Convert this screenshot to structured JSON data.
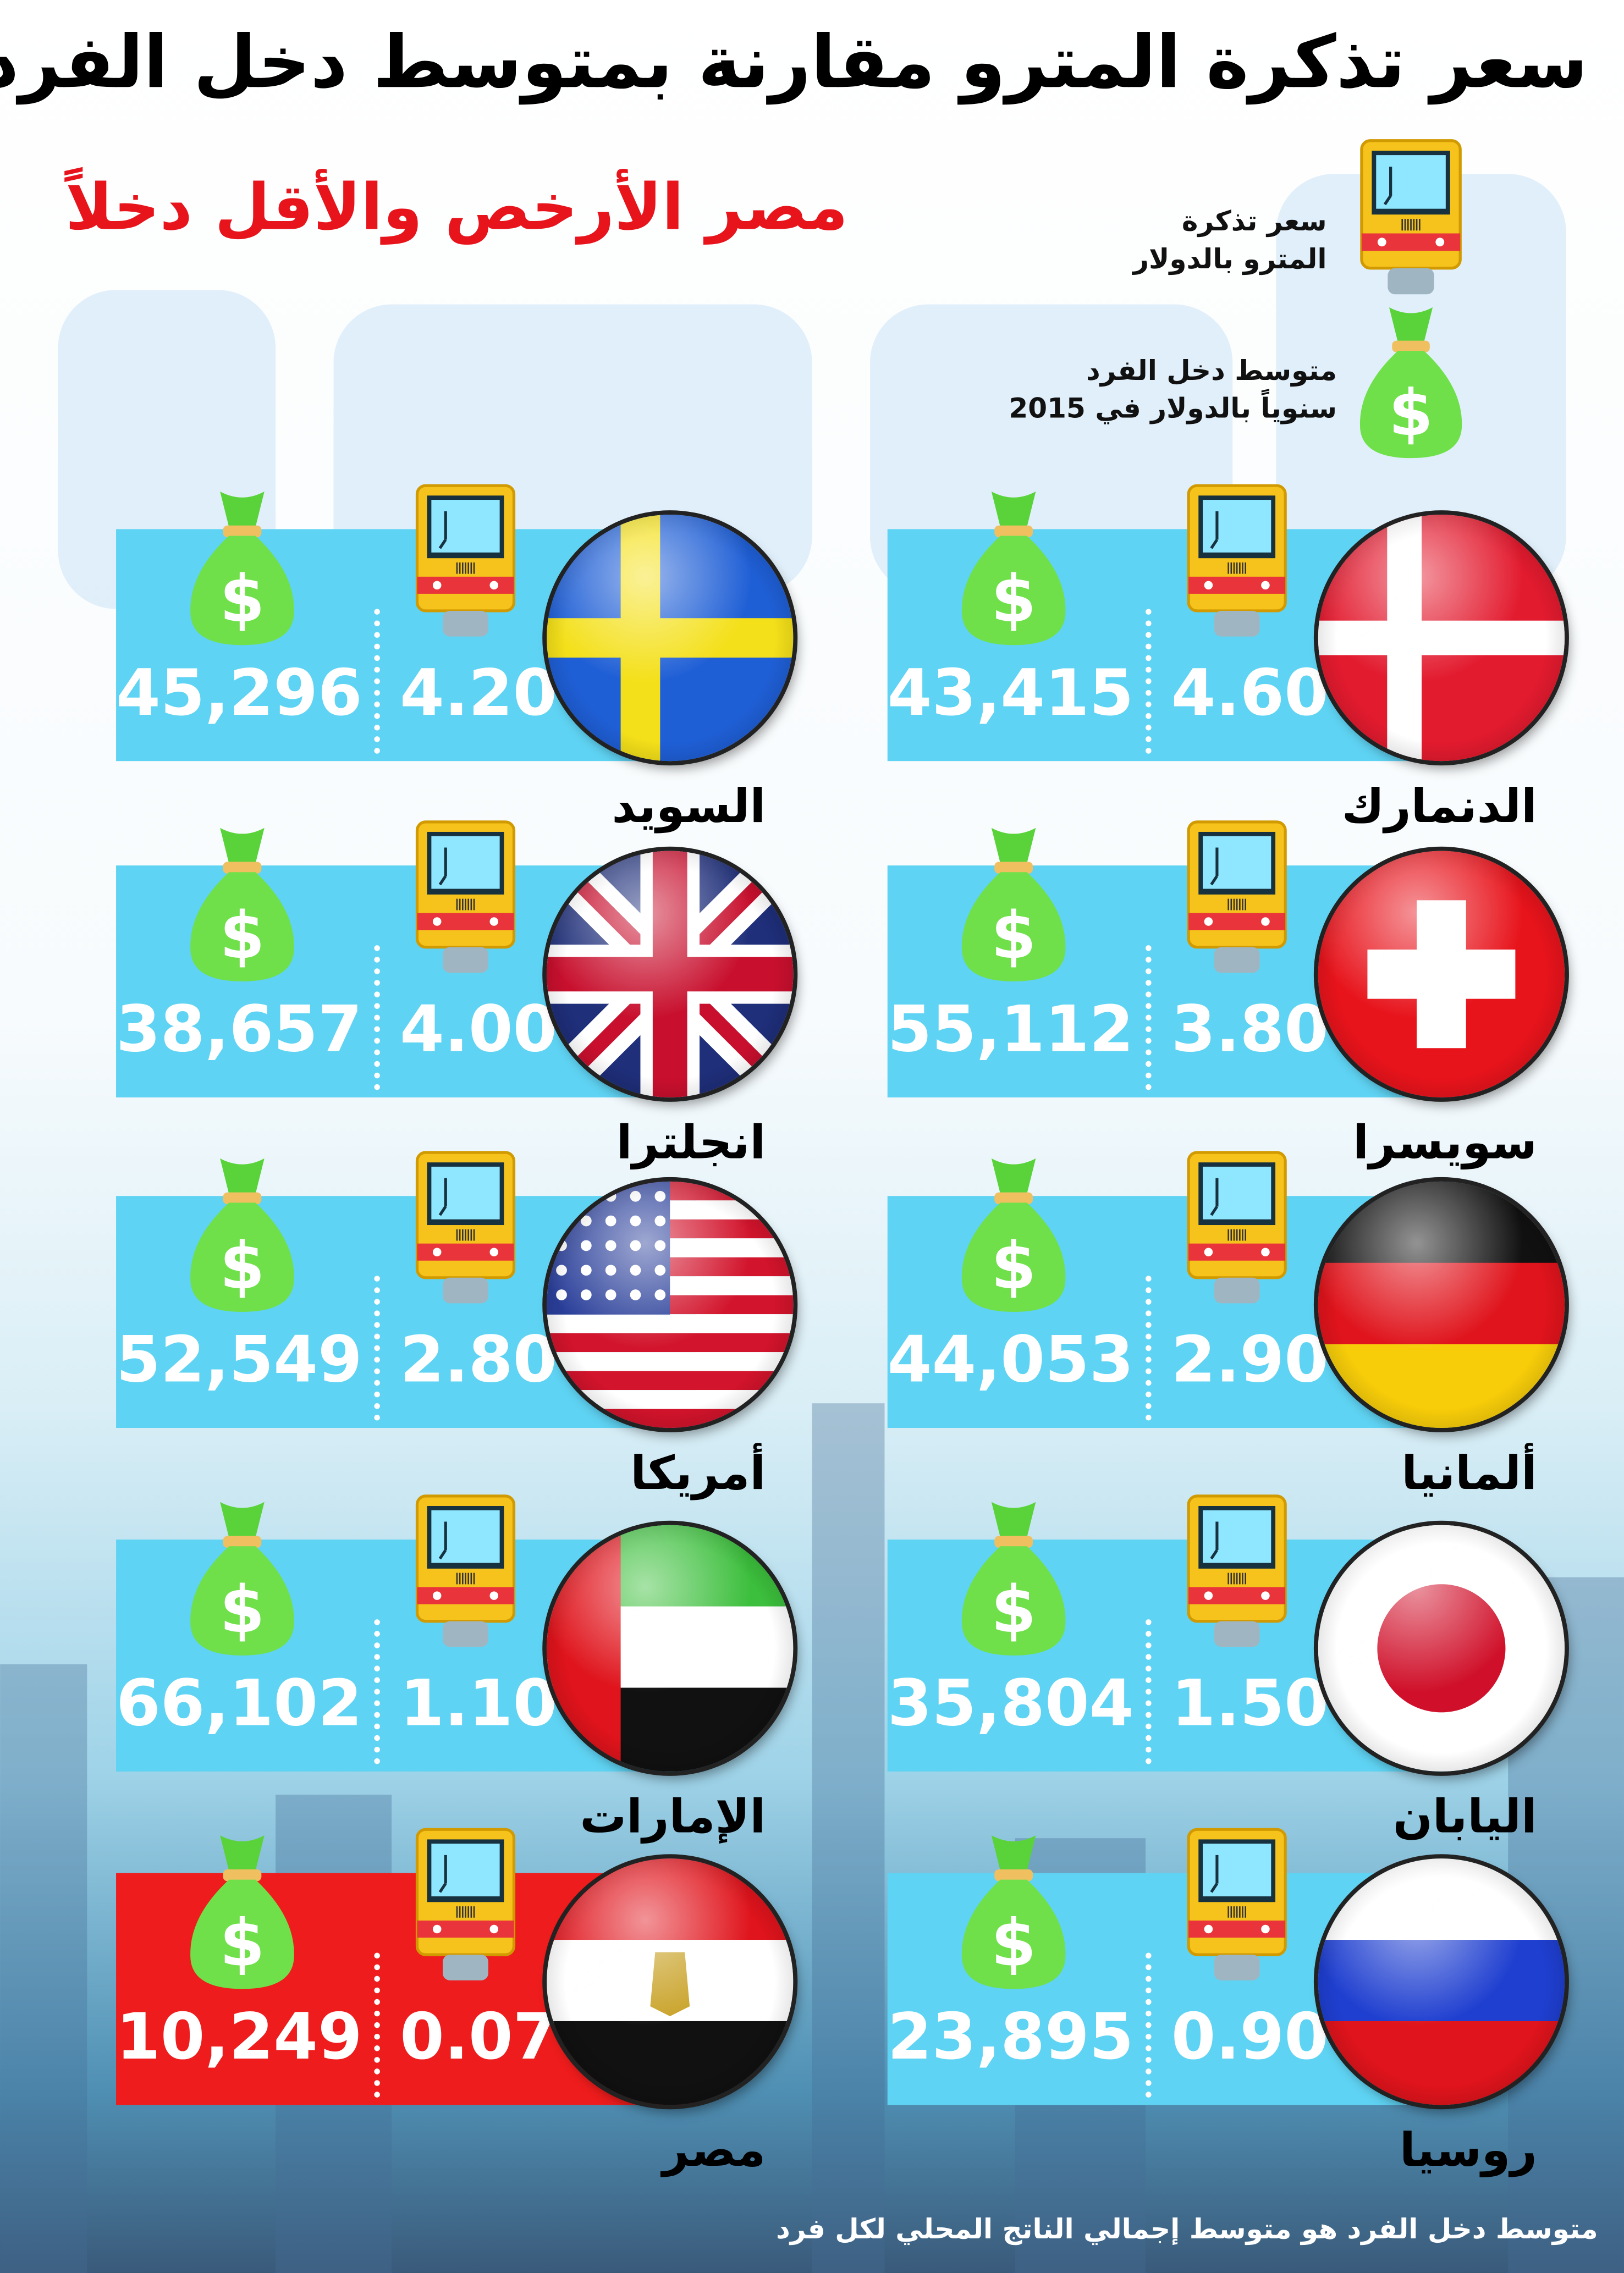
{
  "title": "سعر تذكرة المترو مقارنة بمتوسط دخل الفرد",
  "subtitle": "مصر الأرخص والأقل دخلاً",
  "legend": {
    "metro": {
      "icon": "metro-train-icon",
      "line1": "سعر تذكرة",
      "line2": "المترو بالدولار"
    },
    "income": {
      "icon": "money-bag-icon",
      "line1": "متوسط دخل الفرد",
      "line2": "سنوياً بالدولار في 2015"
    }
  },
  "colors": {
    "card": "#5fd3f3",
    "highlight": "#ee1c1c",
    "subtitle": "#e8141c"
  },
  "countries": [
    {
      "name": "الدنمارك",
      "price": "4.60",
      "income": "43,415",
      "flag": "denmark"
    },
    {
      "name": "السويد",
      "price": "4.20",
      "income": "45,296",
      "flag": "sweden"
    },
    {
      "name": "سويسرا",
      "price": "3.80",
      "income": "55,112",
      "flag": "switzerland"
    },
    {
      "name": "انجلترا",
      "price": "4.00",
      "income": "38,657",
      "flag": "uk"
    },
    {
      "name": "ألمانيا",
      "price": "2.90",
      "income": "44,053",
      "flag": "germany"
    },
    {
      "name": "أمريكا",
      "price": "2.80",
      "income": "52,549",
      "flag": "usa"
    },
    {
      "name": "اليابان",
      "price": "1.50",
      "income": "35,804",
      "flag": "japan"
    },
    {
      "name": "الإمارات",
      "price": "1.10",
      "income": "66,102",
      "flag": "uae"
    },
    {
      "name": "روسيا",
      "price": "0.90",
      "income": "23,895",
      "flag": "russia"
    },
    {
      "name": "مصر",
      "price": "0.07",
      "income": "10,249",
      "flag": "egypt",
      "highlight": true
    }
  ],
  "footer": "متوسط دخل الفرد هو متوسط إجمالي الناتج المحلي لكل فرد"
}
